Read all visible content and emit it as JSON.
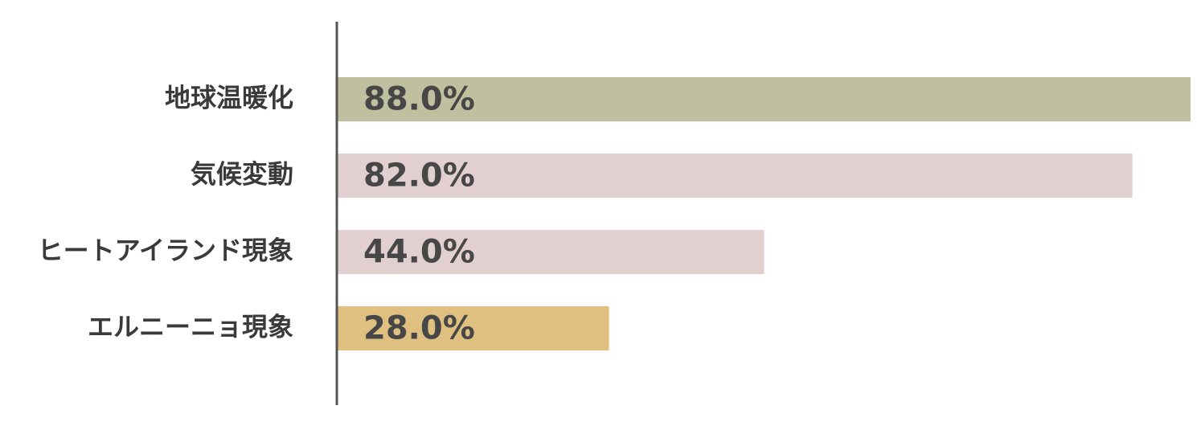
{
  "chart_data": {
    "type": "bar",
    "orientation": "horizontal",
    "categories": [
      "地球温暖化",
      "気候変動",
      "ヒートアイランド現象",
      "エルニーニョ現象"
    ],
    "values": [
      88.0,
      82.0,
      44.0,
      28.0
    ],
    "value_labels": [
      "88.0%",
      "82.0%",
      "44.0%",
      "28.0%"
    ],
    "colors": [
      "#c0bf9f",
      "#e2d0d0",
      "#e2d0d0",
      "#e0c081"
    ],
    "xlim": [
      0,
      88
    ]
  }
}
